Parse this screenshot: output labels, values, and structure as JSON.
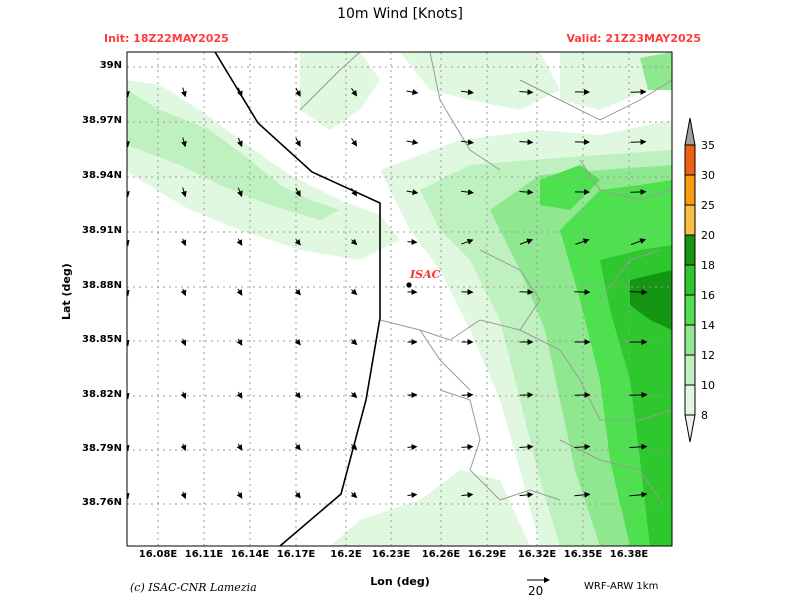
{
  "title": "10m Wind [Knots]",
  "init": "Init: 18Z22MAY2025",
  "valid": "Valid: 21Z23MAY2025",
  "axes": {
    "xlabel": "Lon (deg)",
    "ylabel": "Lat (deg)",
    "xticks": [
      "16.08E",
      "16.11E",
      "16.14E",
      "16.17E",
      "16.2E",
      "16.23E",
      "16.26E",
      "16.29E",
      "16.32E",
      "16.35E",
      "16.38E"
    ],
    "yticks": [
      "39N",
      "38.97N",
      "38.94N",
      "38.91N",
      "38.88N",
      "38.85N",
      "38.82N",
      "38.79N",
      "38.76N"
    ]
  },
  "station_label": "ISAC",
  "colorbar": {
    "levels": [
      "35",
      "30",
      "25",
      "20",
      "18",
      "16",
      "14",
      "12",
      "10",
      "8"
    ],
    "colors": [
      "#f0f0f0",
      "#dff8df",
      "#bff0bf",
      "#8fe88f",
      "#4fe04f",
      "#2ec82e",
      "#149614",
      "#f8c040",
      "#f89c10",
      "#f06010",
      "#a0a0a0"
    ]
  },
  "reference_vector": "20",
  "credit": "(c) ISAC-CNR Lamezia",
  "model": "WRF-ARW 1km"
}
